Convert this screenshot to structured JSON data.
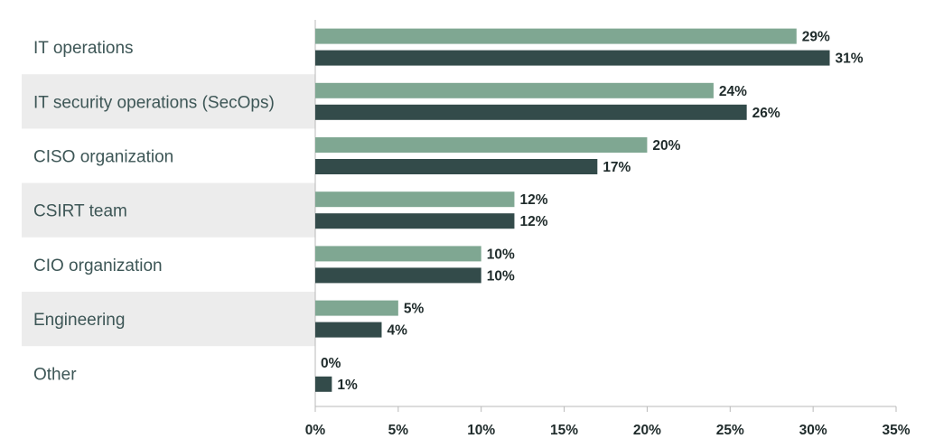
{
  "chart_data": {
    "type": "bar",
    "orientation": "horizontal",
    "categories": [
      "IT operations",
      "IT security operations (SecOps)",
      "CISO organization",
      "CSIRT team",
      "CIO organization",
      "Engineering",
      "Other"
    ],
    "series": [
      {
        "color": "#7fa792",
        "values": [
          29,
          24,
          20,
          12,
          10,
          5,
          0
        ]
      },
      {
        "color": "#334b4a",
        "values": [
          31,
          26,
          17,
          12,
          10,
          4,
          1
        ]
      }
    ],
    "value_suffix": "%",
    "xlim": [
      0,
      35
    ],
    "xticks": [
      0,
      5,
      10,
      15,
      20,
      25,
      30,
      35
    ],
    "xtick_labels": [
      "0%",
      "5%",
      "10%",
      "15%",
      "20%",
      "25%",
      "30%",
      "35%"
    ],
    "title": "",
    "xlabel": "",
    "ylabel": "",
    "grid": false,
    "legend": false,
    "band_color": "#ececec"
  }
}
